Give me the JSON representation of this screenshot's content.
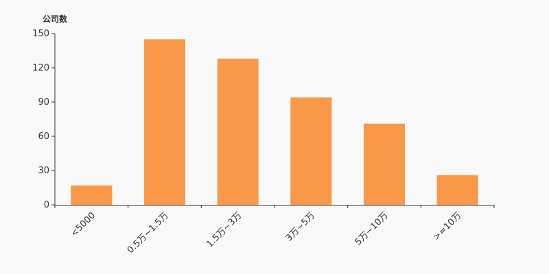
{
  "chart_data": {
    "type": "bar",
    "title": "",
    "xlabel": "",
    "ylabel": "公司数",
    "categories": [
      "<5000",
      "0.5万~1.5万",
      "1.5万~3万",
      "3万~5万",
      "5万~10万",
      ">=10万"
    ],
    "values": [
      17,
      145,
      128,
      94,
      71,
      26
    ],
    "ylim": [
      0,
      150
    ],
    "yticks": [
      0,
      30,
      60,
      90,
      120,
      150
    ],
    "grid": false,
    "bar_color": "#f99848"
  }
}
